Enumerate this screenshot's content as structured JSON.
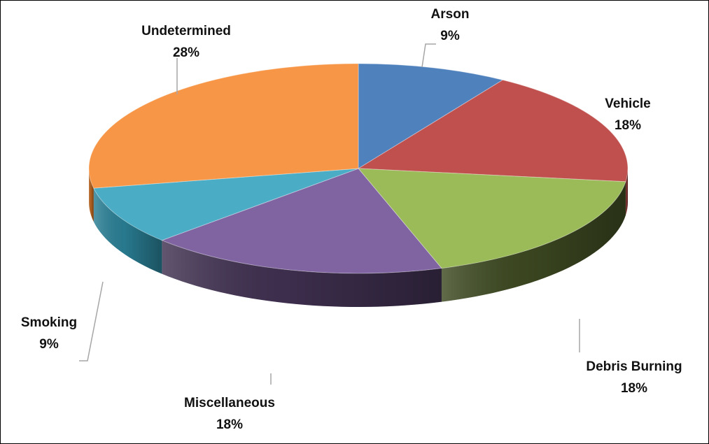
{
  "chart_data": {
    "type": "pie",
    "style": "3d",
    "legend": "none",
    "slices": [
      {
        "label": "Arson",
        "value": 9,
        "display": "9%",
        "color": "#4f81bd",
        "side_color": "#2c4d75"
      },
      {
        "label": "Vehicle",
        "value": 18,
        "display": "18%",
        "color": "#c0504d",
        "side_color": "#772c2a"
      },
      {
        "label": "Debris Burning",
        "value": 18,
        "display": "18%",
        "color": "#9bbb59",
        "side_color": "#3e4a22"
      },
      {
        "label": "Miscellaneous",
        "value": 18,
        "display": "18%",
        "color": "#8064a2",
        "side_color": "#3f3050"
      },
      {
        "label": "Smoking",
        "value": 9,
        "display": "9%",
        "color": "#4bacc6",
        "side_color": "#2a7f95"
      },
      {
        "label": "Undetermined",
        "value": 28,
        "display": "28%",
        "color": "#f79646",
        "side_color": "#b86420"
      }
    ]
  }
}
